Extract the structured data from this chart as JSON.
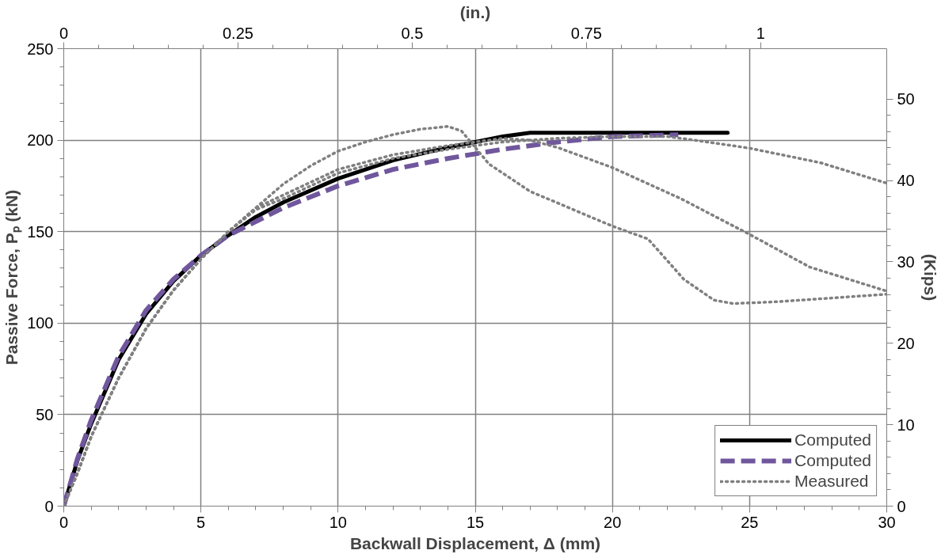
{
  "chart_data": {
    "type": "line",
    "xlabel": "Backwall Displacement, Δ (mm)",
    "ylabel": "Passive Force, Pₚ (kN)",
    "x2label": "(in.)",
    "y2label": "(Kips)",
    "xlim": [
      0,
      30
    ],
    "xticks": [
      0,
      5,
      10,
      15,
      20,
      25,
      30
    ],
    "ylim": [
      0,
      250
    ],
    "yticks": [
      0,
      50,
      100,
      150,
      200,
      250
    ],
    "x2lim": [
      0,
      1.181
    ],
    "x2ticks": [
      0,
      0.25,
      0.5,
      0.75,
      1
    ],
    "y2lim": [
      0,
      56.2
    ],
    "y2ticks": [
      0,
      10,
      20,
      30,
      40,
      50
    ],
    "grid": true,
    "legend": "bottom right",
    "series": [
      {
        "name": "Computed",
        "color": "#000000",
        "line_style": "solid",
        "x": [
          0,
          0.5,
          1,
          2,
          3,
          4,
          5,
          6,
          7,
          8,
          10,
          12,
          14,
          16,
          17,
          20,
          24.2
        ],
        "values": [
          0,
          25,
          45,
          80,
          105,
          123,
          137,
          148,
          158,
          166,
          179,
          189,
          196,
          202,
          204,
          204,
          204
        ]
      },
      {
        "name": "Computed",
        "color": "#70579d",
        "line_style": "dashed",
        "x": [
          0,
          0.5,
          1,
          2,
          3,
          4,
          5,
          6,
          8,
          10,
          12,
          14,
          16,
          18,
          20,
          22.4
        ],
        "values": [
          0,
          26,
          47,
          82,
          107,
          124,
          137,
          148,
          163,
          175,
          184,
          190,
          195,
          199,
          202,
          203
        ]
      },
      {
        "name": "Measured",
        "color": "#808080",
        "line_style": "dotted",
        "x": [
          0,
          0.5,
          1,
          2,
          3,
          4,
          5,
          6,
          7,
          8,
          9,
          10,
          11,
          12,
          13,
          14,
          14.5,
          15.5,
          17,
          20,
          21.3,
          22.1,
          22.6,
          23.7,
          24.4,
          26,
          30
        ],
        "values": [
          0,
          18,
          38,
          70,
          97,
          118,
          135,
          150,
          163,
          176,
          186,
          194,
          199,
          203,
          206,
          207.5,
          205,
          187,
          172,
          153,
          146,
          132.5,
          124,
          112.6,
          110.7,
          111.7,
          115.8
        ]
      },
      {
        "color": "#808080",
        "line_style": "dotted",
        "x": [
          0,
          0.5,
          1,
          2,
          3,
          4,
          5,
          6,
          7,
          8,
          10,
          12,
          14,
          16,
          17,
          18,
          20,
          22.5,
          25,
          27.2,
          30
        ],
        "values": [
          0,
          18,
          38,
          70,
          97,
          118,
          135,
          150,
          163,
          170,
          184,
          192,
          197,
          201,
          200,
          196,
          185,
          168,
          148.5,
          130.6,
          117.5
        ]
      },
      {
        "color": "#808080",
        "line_style": "dotted",
        "x": [
          0,
          0.5,
          1,
          2,
          3,
          4,
          5,
          6,
          7,
          8,
          10,
          12,
          14,
          16,
          18,
          20,
          22,
          23,
          25,
          27.6,
          30
        ],
        "values": [
          0,
          18,
          38,
          70,
          97,
          118,
          135,
          150,
          162,
          168,
          182,
          190,
          195,
          199,
          201,
          202,
          202,
          200,
          195.6,
          187.6,
          176.5
        ]
      }
    ]
  }
}
